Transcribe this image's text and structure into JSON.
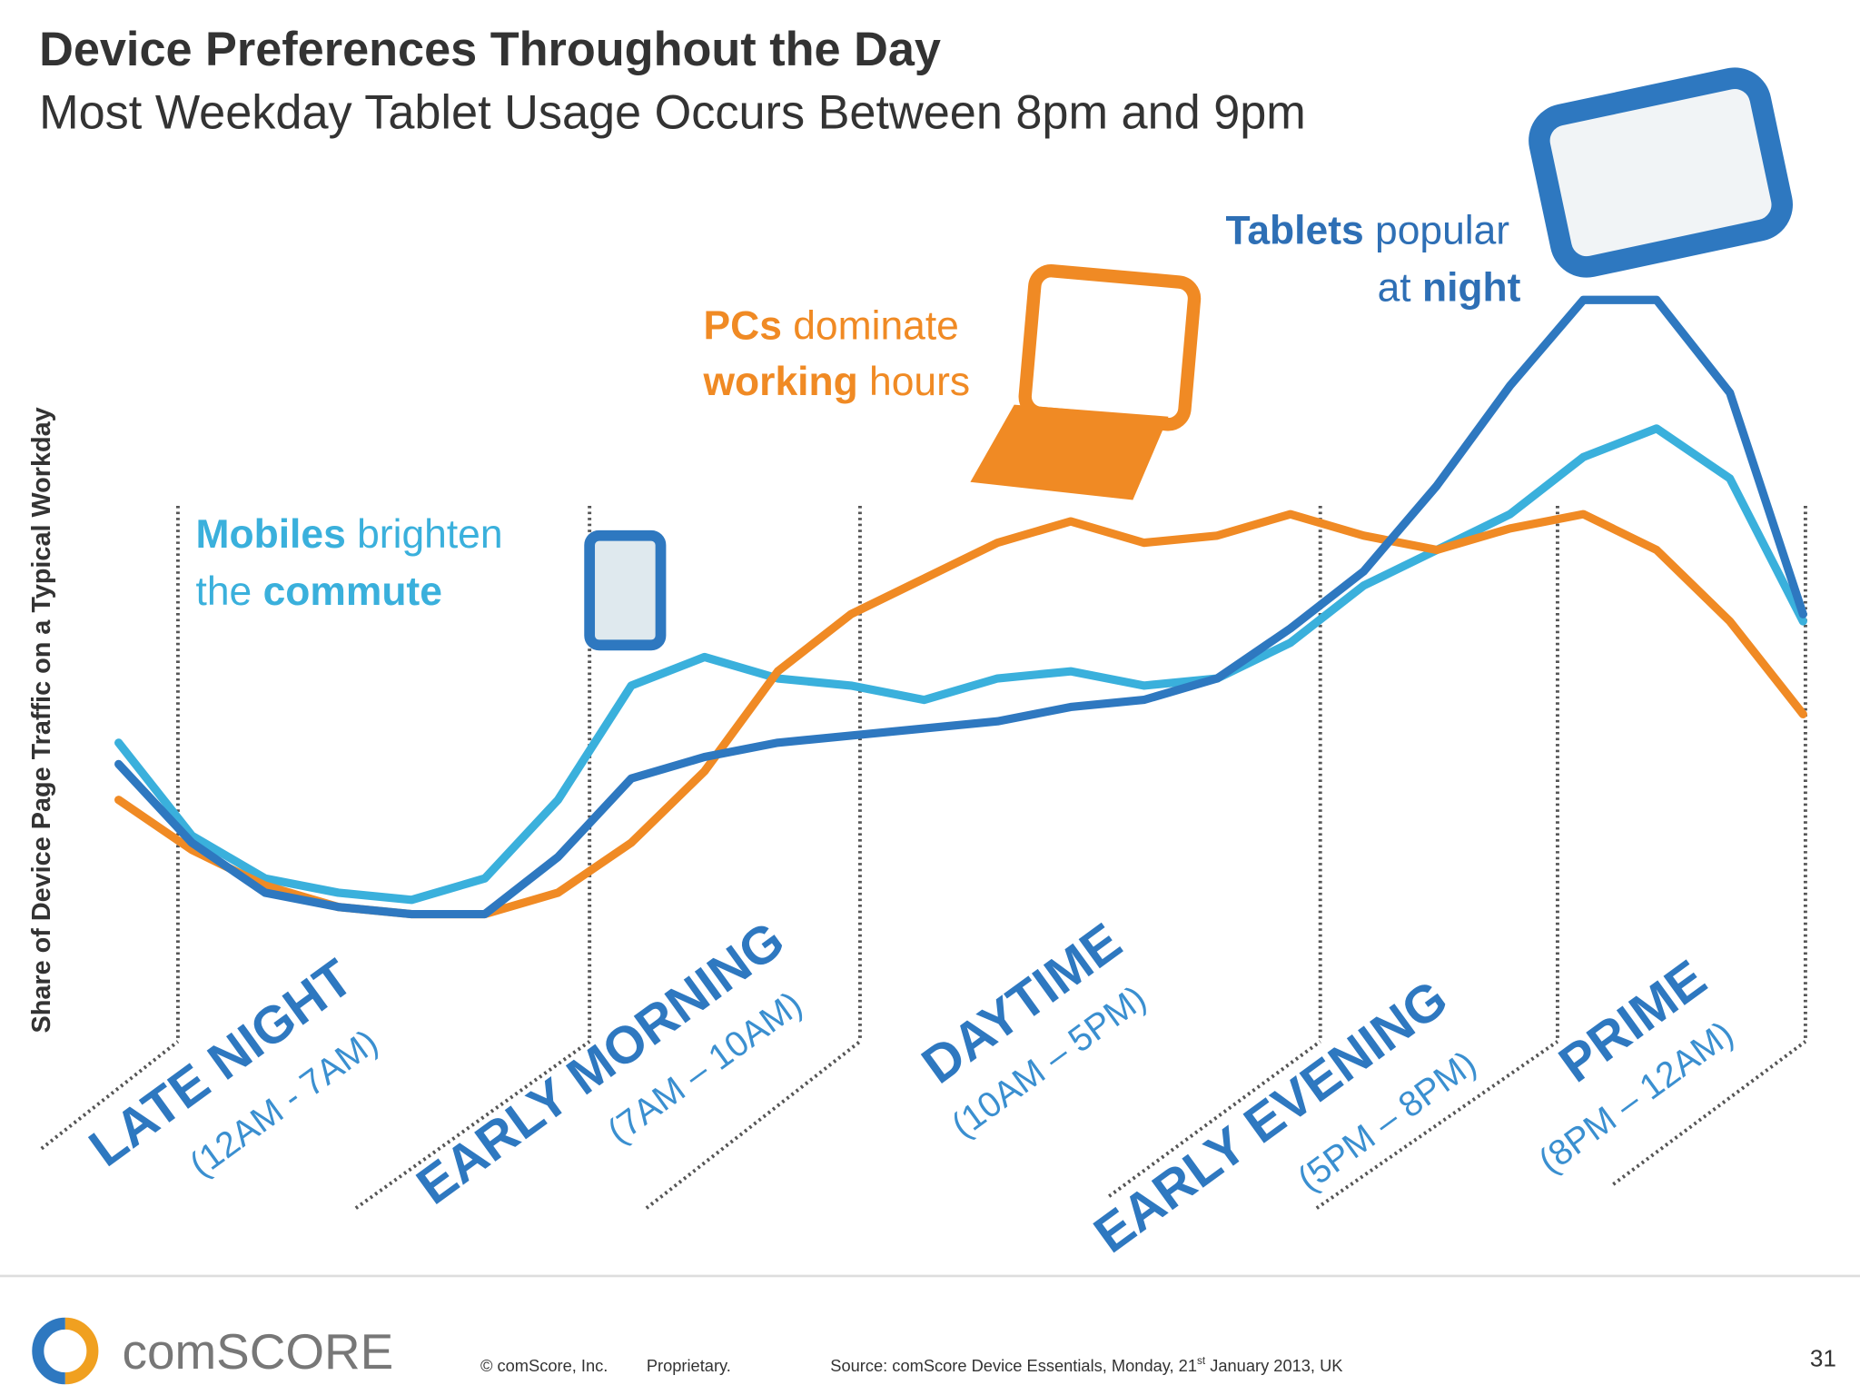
{
  "chart_data": {
    "type": "line",
    "title": "Device Preferences Throughout the Day",
    "subtitle": "Most Weekday Tablet Usage Occurs Between 8pm and 9pm",
    "y_label": "Share of Device Page Traffic on a Typical Workday",
    "ylim": [
      0,
      120
    ],
    "series": [
      {
        "name": "Tablets",
        "color": "#2e78c0",
        "values": [
          43,
          32,
          25,
          23,
          22,
          22,
          30,
          41,
          44,
          46,
          47,
          48,
          49,
          51,
          52,
          55,
          62,
          70,
          82,
          96,
          108,
          108,
          95,
          64
        ]
      },
      {
        "name": "Mobiles",
        "color": "#3ab0dc",
        "values": [
          46,
          33,
          27,
          25,
          24,
          27,
          38,
          54,
          58,
          55,
          54,
          52,
          55,
          56,
          54,
          55,
          60,
          68,
          73,
          78,
          86,
          90,
          83,
          63
        ]
      },
      {
        "name": "PCs",
        "color": "#f08a24",
        "values": [
          38,
          31,
          26,
          23,
          22,
          22,
          25,
          32,
          42,
          56,
          64,
          69,
          74,
          77,
          74,
          75,
          78,
          75,
          73,
          76,
          78,
          73,
          63,
          50
        ]
      }
    ],
    "annotations": {
      "mobiles": [
        "Mobiles",
        " brighten",
        "the ",
        "commute"
      ],
      "pcs": [
        "PCs",
        " dominate",
        "working",
        " hours"
      ],
      "tablets": [
        "Tablets",
        " popular",
        "at ",
        "night"
      ]
    },
    "periods": [
      {
        "name": "LATE NIGHT",
        "time": "(12AM - 7AM)"
      },
      {
        "name": "EARLY MORNING",
        "time": "(7AM – 10AM)"
      },
      {
        "name": "DAYTIME",
        "time": "(10AM – 5PM)"
      },
      {
        "name": "EARLY EVENING",
        "time": "(5PM – 8PM)"
      },
      {
        "name": "PRIME",
        "time": "(8PM – 12AM)"
      }
    ]
  },
  "footer": {
    "brand": "comSCORE",
    "copyright": "© comScore, Inc.",
    "proprietary": "Proprietary.",
    "source": [
      "Source: comScore Device Essentials, Monday, 21",
      "st",
      " January 2013, UK"
    ],
    "page": "31"
  }
}
